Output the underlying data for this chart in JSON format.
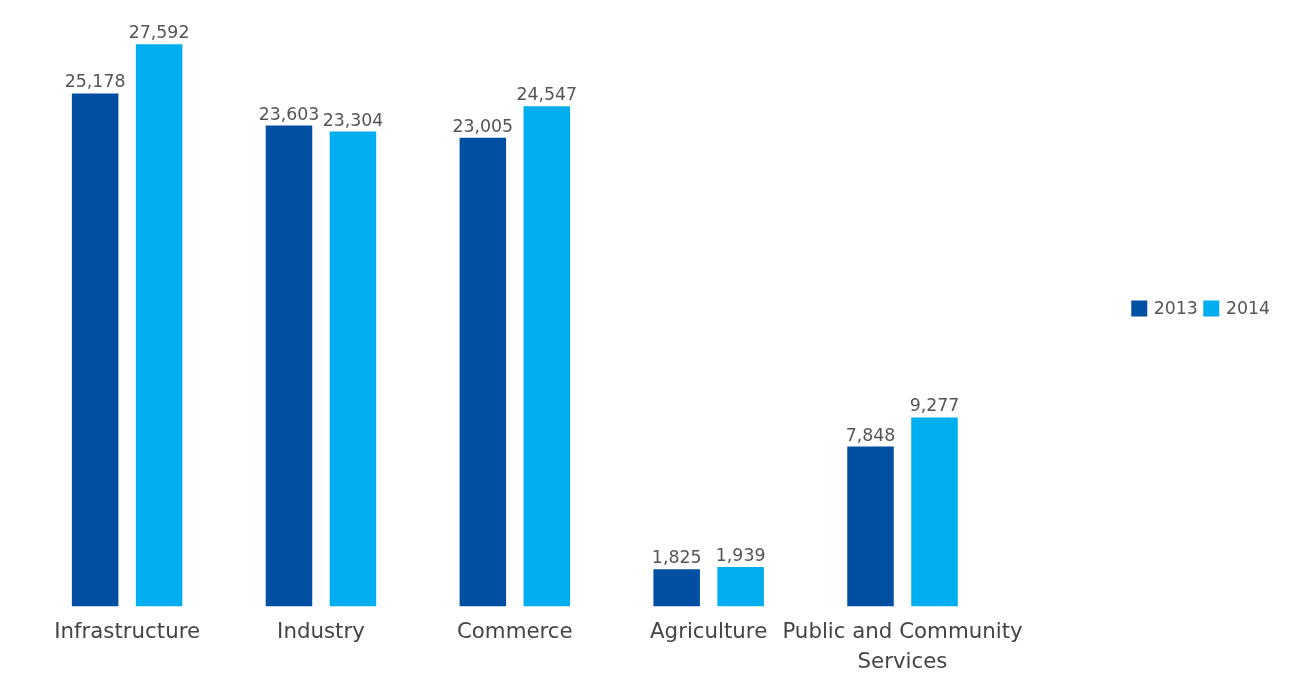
{
  "chart_data": {
    "type": "bar",
    "categories": [
      "Infrastructure",
      "Industry",
      "Commerce",
      "Agriculture",
      "Public and Community Services"
    ],
    "series": [
      {
        "name": "2013",
        "color": "#004fa3",
        "values": [
          25178,
          23603,
          23005,
          1825,
          7848
        ],
        "value_labels": [
          "25,178",
          "23,603",
          "23,005",
          "1,825",
          "7,848"
        ]
      },
      {
        "name": "2014",
        "color": "#00aeef",
        "values": [
          27592,
          23304,
          24547,
          1939,
          9277
        ],
        "value_labels": [
          "27,592",
          "23,304",
          "24,547",
          "1,939",
          "9,277"
        ]
      }
    ],
    "legend": "right"
  }
}
